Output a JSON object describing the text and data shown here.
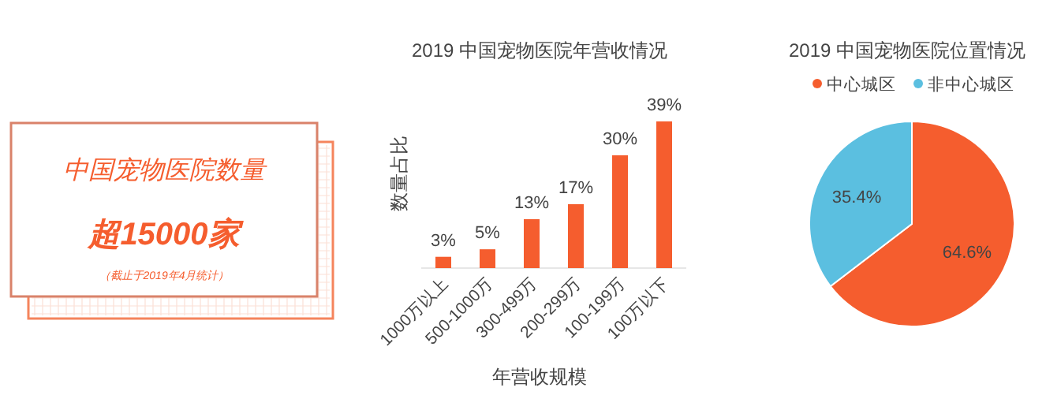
{
  "chart_data": [
    {
      "type": "other",
      "title": "中国宠物医院数量",
      "subtitle": "超15000家",
      "annotations": [
        "（截止于2019年4月统计）"
      ]
    },
    {
      "type": "bar",
      "title": "2019 中国宠物医院年营收情况",
      "xlabel": "年营收规模",
      "ylabel": "数量占比",
      "categories": [
        "1000万以上",
        "500-1000万",
        "300-499万",
        "200-299万",
        "100-199万",
        "100万以下"
      ],
      "values": [
        3,
        5,
        13,
        17,
        30,
        39
      ],
      "value_labels": [
        "3%",
        "5%",
        "13%",
        "17%",
        "30%",
        "39%"
      ],
      "color": "#f55d2e"
    },
    {
      "type": "pie",
      "title": "2019 中国宠物医院位置情况",
      "categories": [
        "中心城区",
        "非中心城区"
      ],
      "values": [
        64.6,
        35.4
      ],
      "value_labels": [
        "64.6%",
        "35.4%"
      ],
      "colors": [
        "#f55d2e",
        "#5bbfe0"
      ],
      "legend": "top"
    }
  ]
}
